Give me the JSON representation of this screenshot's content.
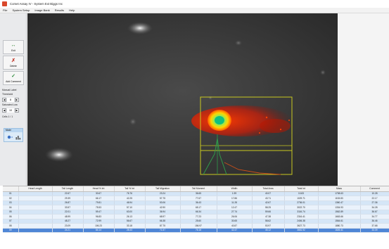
{
  "window": {
    "title": "Comet Assay IV - System Ext Biggs Inc"
  },
  "menu": [
    "File",
    "System Setup",
    "Image Bank",
    "Results",
    "Help"
  ],
  "sidebar": {
    "exit_label": "Exit",
    "delete_label": "Delete",
    "add_label": "Add Comment",
    "manual_label": "Manual Label",
    "threshold_label": "Threshold",
    "threshold_value": "8",
    "saturation_label": "Saturated Low",
    "saturation_value": "10",
    "limit_label": "Cells 1 / 1",
    "mode_label": "Mode"
  },
  "table": {
    "columns": [
      "",
      "Head Length",
      "Tail Length",
      "Head % Int",
      "Tail % Int",
      "Tail Migration",
      "Tail Moment",
      "Width",
      "Total Area",
      "Total Int",
      "Mass",
      "Comment"
    ],
    "rows": [
      [
        "01",
        "",
        "22.67",
        "30.67",
        "76.76",
        "23.24",
        "36.65",
        "1.99",
        "40.07",
        "10.83",
        "1708.63",
        "10.28"
      ],
      [
        "02",
        "",
        "29.39",
        "66.17",
        "42.25",
        "57.75",
        "77.67",
        "17.86",
        "43.71",
        "1029.71",
        "1153.83",
        "22.17"
      ],
      [
        "03",
        "",
        "26.87",
        "79.81",
        "46.94",
        "53.06",
        "36.43",
        "11.28",
        "42.67",
        "2736.01",
        "1360.47",
        "27.36"
      ],
      [
        "04",
        "",
        "33.57",
        "75.53",
        "57.10",
        "42.90",
        "65.17",
        "12.47",
        "58.25",
        "3022.70",
        "1334.93",
        "34.28"
      ],
      [
        "05",
        "",
        "22.01",
        "59.47",
        "63.00",
        "36.94",
        "66.34",
        "27.74",
        "59.66",
        "3116.74",
        "1562.89",
        "36.67"
      ],
      [
        "06",
        "",
        "48.99",
        "96.83",
        "26.13",
        "68.97",
        "77.23",
        "26.06",
        "47.38",
        "2316.41",
        "1663.66",
        "34.77"
      ],
      [
        "07",
        "",
        "48.27",
        "72.99",
        "56.67",
        "66.38",
        "25.60",
        "30.65",
        "58.62",
        "2406.38",
        "1564.61",
        "36.46"
      ],
      [
        "08",
        "",
        "23.09",
        "106.23",
        "33.18",
        "87.75",
        "156.97",
        "40.87",
        "53.97",
        "3627.73",
        "1880.73",
        "37.68"
      ],
      [
        "09",
        "",
        "24.21",
        "84.14",
        "28.43",
        "71.57",
        "76.18",
        "42.47",
        "45.12",
        "3681.92",
        "1826.41",
        "33.39"
      ]
    ]
  }
}
